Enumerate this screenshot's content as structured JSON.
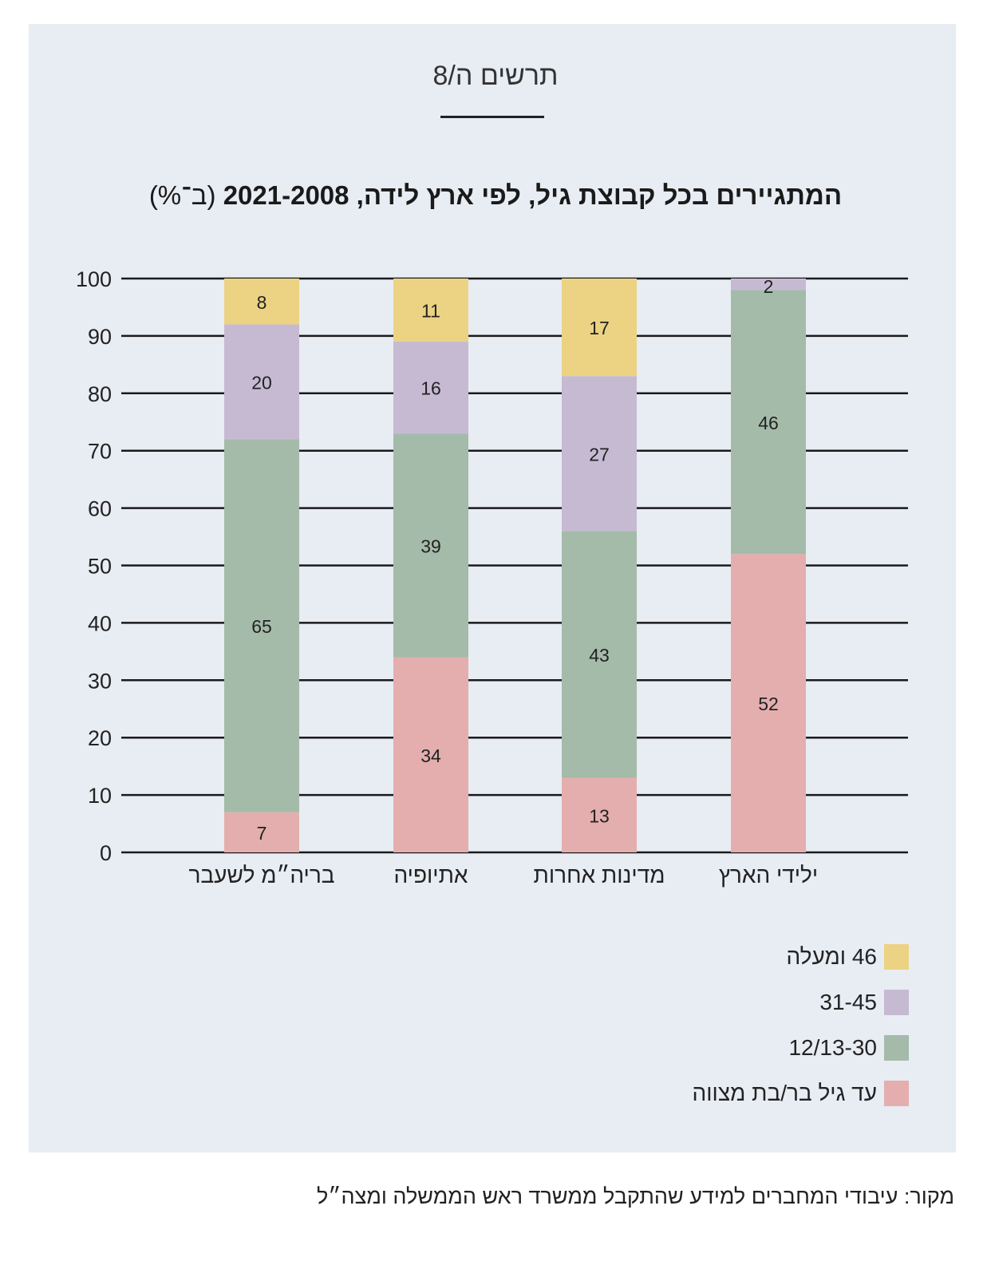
{
  "figure_label": "תרשים ה/8",
  "source": "מקור: עיבודי המחברים למידע שהתקבל ממשרד ראש הממשלה ומצה״ל",
  "chart_data": {
    "type": "bar",
    "stacked": true,
    "title": "המתגיירים בכל קבוצת גיל, לפי ארץ לידה, 2021-2008",
    "title_unit": "(ב־%)",
    "categories": [
      "בריה״מ לשעבר",
      "אתיופיה",
      "מדינות אחרות",
      "ילידי הארץ"
    ],
    "ylim": [
      0,
      100
    ],
    "yticks": [
      0,
      10,
      20,
      30,
      40,
      50,
      60,
      70,
      80,
      90,
      100
    ],
    "grid": true,
    "legend_position": "bottom-right",
    "series": [
      {
        "name": "עד גיל בר/בת מצווה",
        "color": "#e4aeae",
        "values": [
          7,
          34,
          13,
          52
        ]
      },
      {
        "name": "12/13-30",
        "color": "#a4bba9",
        "values": [
          65,
          39,
          43,
          46
        ]
      },
      {
        "name": "31-45",
        "color": "#c6bad3",
        "values": [
          20,
          16,
          27,
          2
        ]
      },
      {
        "name": "46 ומעלה",
        "color": "#ecd383",
        "values": [
          8,
          11,
          17,
          0
        ]
      }
    ],
    "data_labels": [
      [
        "7",
        "34",
        "13",
        "52"
      ],
      [
        "65",
        "39",
        "43",
        "46"
      ],
      [
        "20",
        "16",
        "27",
        "2"
      ],
      [
        "8",
        "11",
        "17",
        ""
      ]
    ]
  }
}
